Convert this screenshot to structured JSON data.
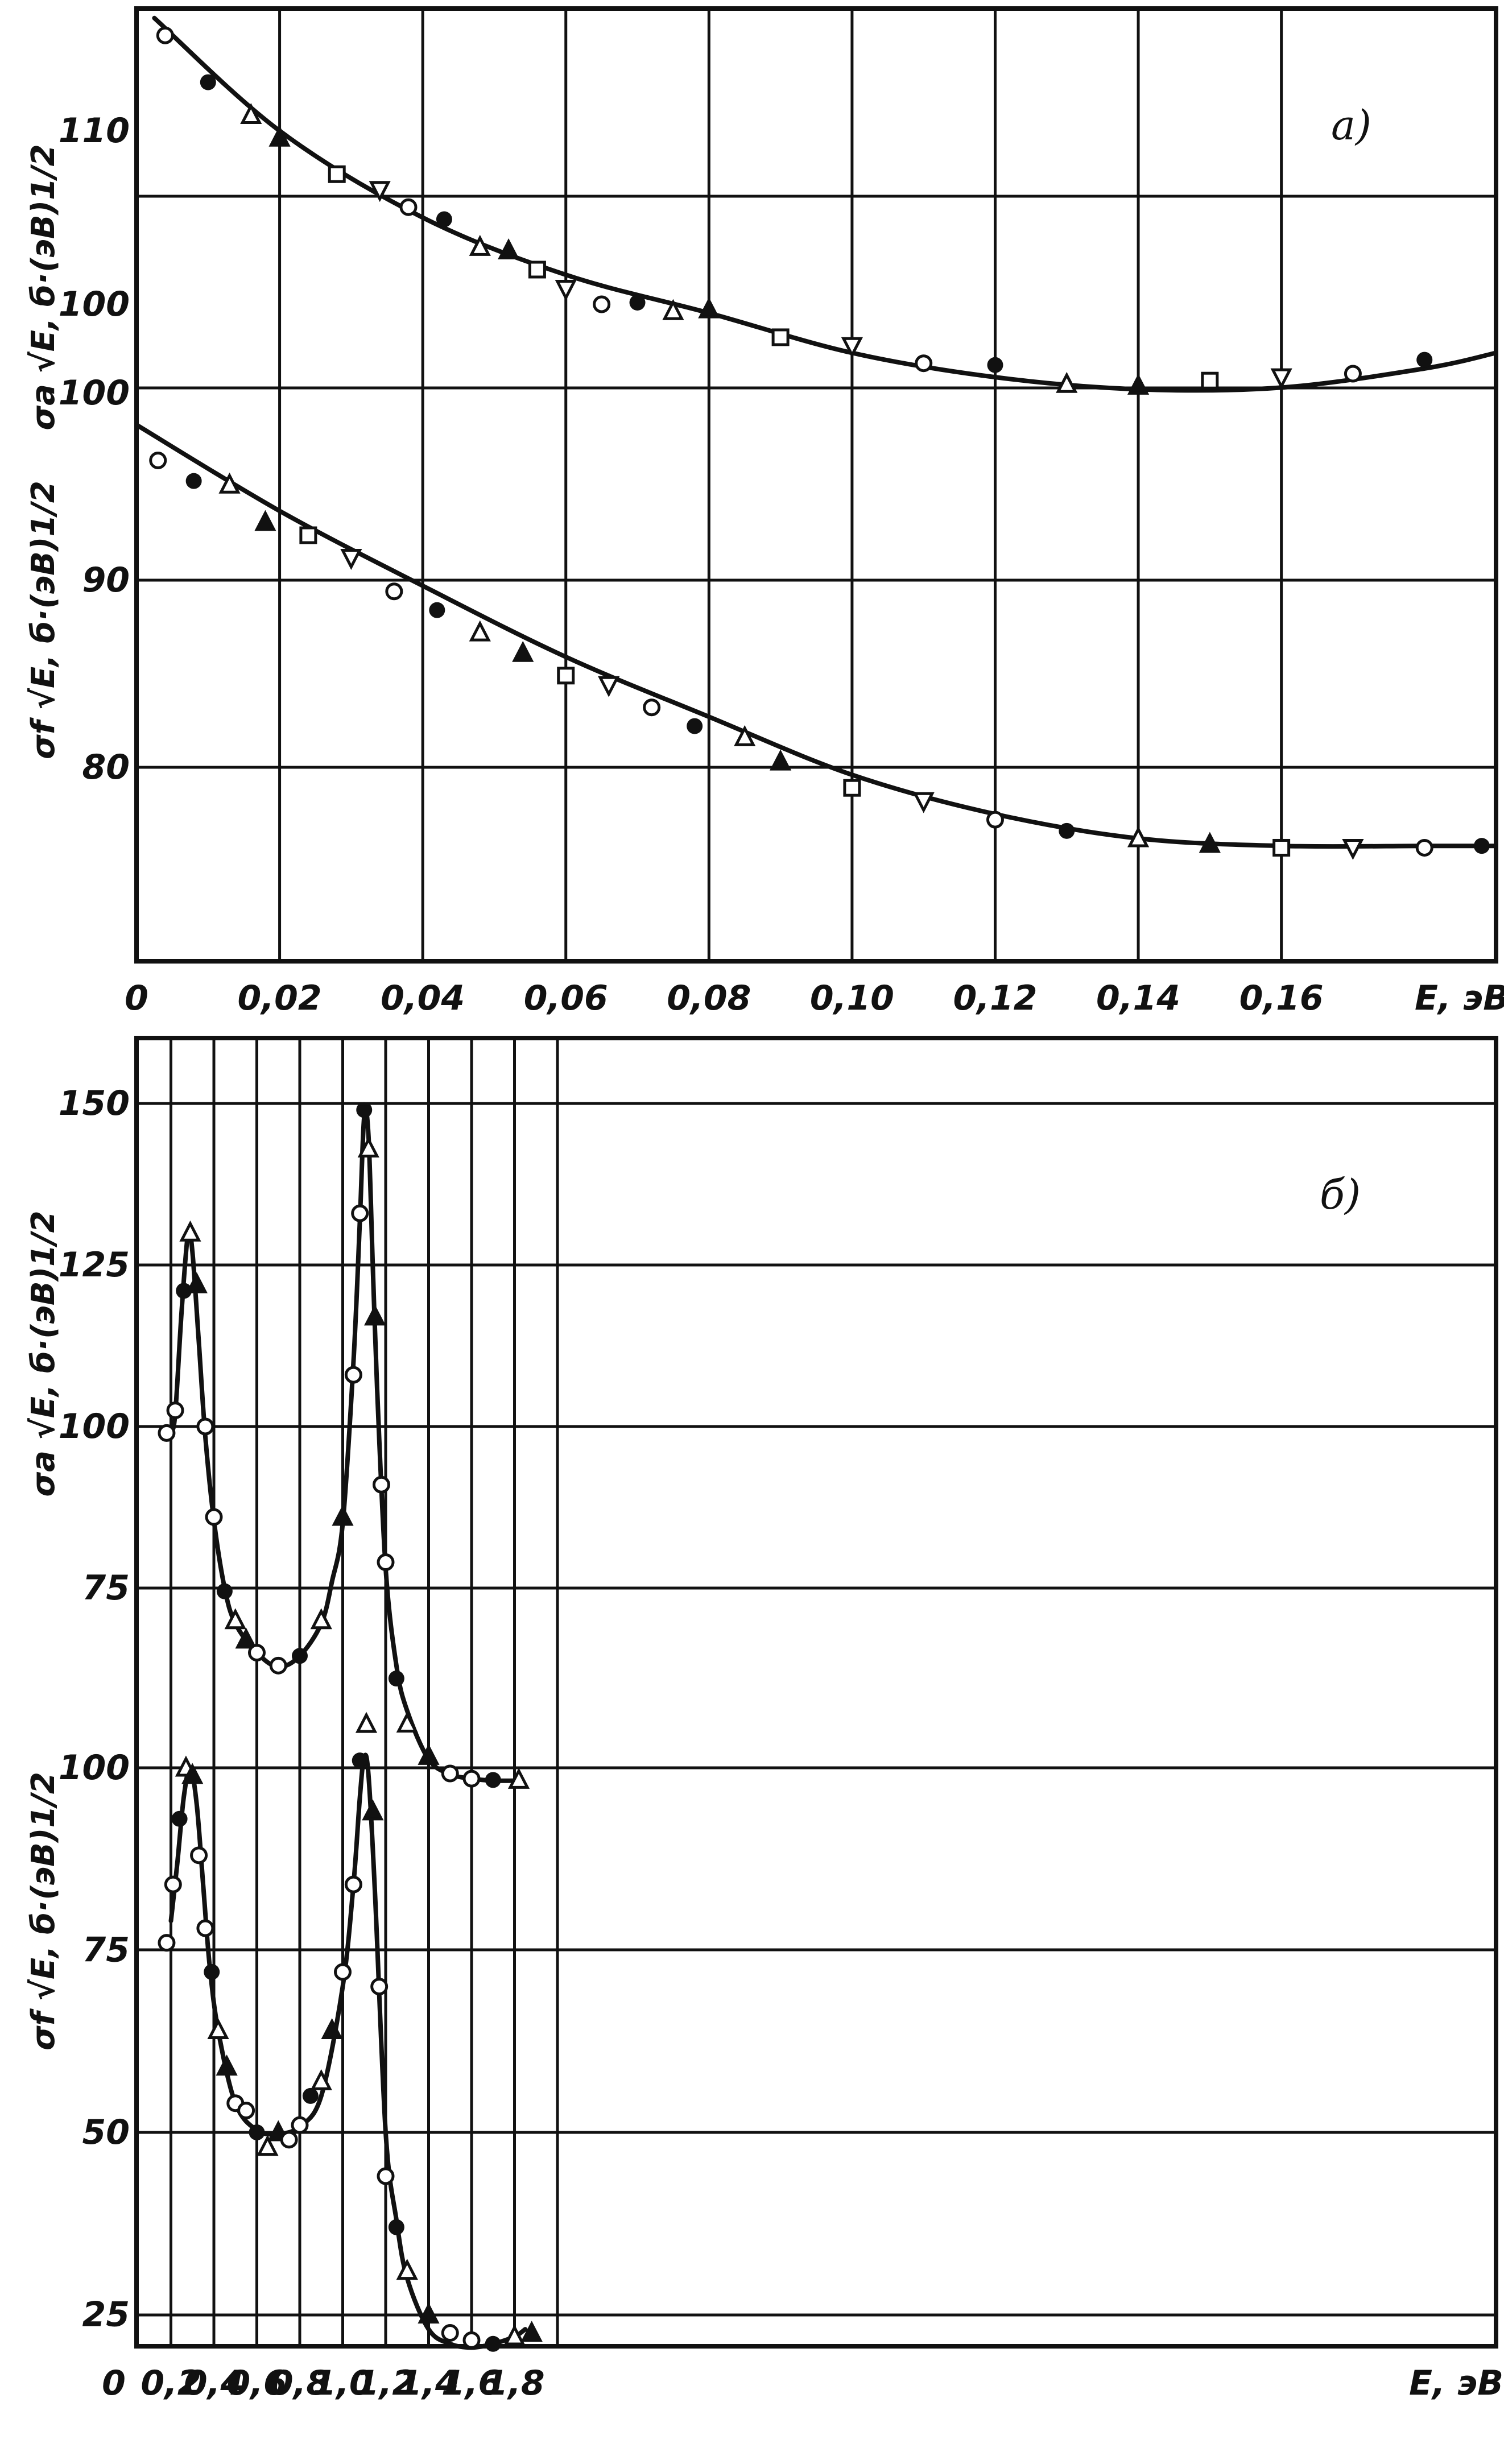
{
  "figure": {
    "panel_a_label": "а)",
    "panel_b_label": "б)",
    "xunit_a": "E, эВ",
    "xunit_b": "E, эВ"
  },
  "chart_data": [
    {
      "type": "scatter",
      "panel": "а)",
      "xlabel": "E, эВ",
      "xlim": [
        0,
        0.19
      ],
      "x_ticks": [
        "0",
        "0,02",
        "0,04",
        "0,06",
        "0,08",
        "0,10",
        "0,12",
        "0,14",
        "0,16",
        "E, эВ"
      ],
      "grid": true,
      "upper": {
        "ylabel": "σa √E, б·(эВ)1/2",
        "y_ticks": [
          {
            "v": 100,
            "t": "100"
          },
          {
            "v": 110,
            "t": "110"
          }
        ],
        "ylim": [
          90,
          116
        ],
        "curve": {
          "x": [
            0.0025,
            0.02,
            0.04,
            0.06,
            0.08,
            0.1,
            0.12,
            0.14,
            0.16,
            0.18,
            0.19
          ],
          "y": [
            116.5,
            110,
            105,
            101.7,
            99.5,
            97.2,
            95.8,
            95.1,
            95.2,
            96.3,
            97.2
          ]
        },
        "points": {
          "x": [
            0.004,
            0.01,
            0.016,
            0.02,
            0.028,
            0.034,
            0.038,
            0.043,
            0.048,
            0.052,
            0.056,
            0.06,
            0.065,
            0.07,
            0.075,
            0.08,
            0.09,
            0.1,
            0.11,
            0.12,
            0.13,
            0.14,
            0.15,
            0.16,
            0.17,
            0.18
          ],
          "y": [
            115.5,
            112.8,
            110.9,
            109.6,
            107.5,
            106.6,
            105.6,
            104.9,
            103.3,
            103.1,
            102,
            100.9,
            100,
            100.1,
            99.6,
            99.7,
            98.1,
            97.6,
            96.6,
            96.5,
            95.4,
            95.3,
            95.6,
            95.8,
            96,
            96.8
          ]
        }
      },
      "lower": {
        "ylabel": "σf √E, б·(эВ)1/2",
        "y_ticks": [
          {
            "v": 80,
            "t": "80"
          },
          {
            "v": 90,
            "t": "90"
          },
          {
            "v": 100,
            "t": "100"
          }
        ],
        "ylim": [
          70,
          100
        ],
        "curve": {
          "x": [
            0,
            0.02,
            0.04,
            0.06,
            0.08,
            0.1,
            0.12,
            0.14,
            0.16,
            0.18,
            0.19
          ],
          "y": [
            98.3,
            93.7,
            89.7,
            85.9,
            82.7,
            79.6,
            77.5,
            76.2,
            75.8,
            75.8,
            75.8
          ]
        },
        "points": {
          "x": [
            0.003,
            0.008,
            0.013,
            0.018,
            0.024,
            0.03,
            0.036,
            0.042,
            0.048,
            0.054,
            0.06,
            0.066,
            0.072,
            0.078,
            0.085,
            0.09,
            0.1,
            0.11,
            0.12,
            0.13,
            0.14,
            0.15,
            0.16,
            0.17,
            0.18,
            0.188
          ],
          "y": [
            96.4,
            95.3,
            95.1,
            93.1,
            92.4,
            91.2,
            89.4,
            88.4,
            87.2,
            86.1,
            84.9,
            84.4,
            83.2,
            82.2,
            81.6,
            80.3,
            78.9,
            78.2,
            77.2,
            76.6,
            76.2,
            75.9,
            75.7,
            75.7,
            75.7,
            75.8
          ]
        }
      }
    },
    {
      "type": "scatter",
      "panel": "б)",
      "xlabel": "E, эВ",
      "xlim": [
        0,
        2.0
      ],
      "x_ticks": [
        "0",
        "0,2",
        "0,4",
        "0,6",
        "0,8",
        "1,0",
        "1,2",
        "1,4",
        "1,6",
        "1,8",
        "E, эВ"
      ],
      "grid": true,
      "upper": {
        "ylabel": "σa √E, б·(эВ)1/2",
        "y_ticks": [
          {
            "v": 75,
            "t": "75"
          },
          {
            "v": 100,
            "t": "100"
          },
          {
            "v": 125,
            "t": "125"
          },
          {
            "v": 150,
            "t": "150"
          }
        ],
        "ylim": [
          50,
          150
        ],
        "curve": {
          "x": [
            0.18,
            0.2,
            0.22,
            0.25,
            0.28,
            0.3,
            0.33,
            0.36,
            0.4,
            0.45,
            0.5,
            0.6,
            0.7,
            0.8,
            0.9,
            0.95,
            1.0,
            1.05,
            1.08,
            1.1,
            1.12,
            1.14,
            1.16,
            1.2,
            1.25,
            1.3,
            1.4,
            1.5,
            1.6,
            1.7,
            1.82
          ],
          "y": [
            98,
            99,
            102,
            118,
            130,
            127,
            113,
            98.5,
            85.5,
            75,
            69.5,
            65,
            62.8,
            64.5,
            69.5,
            76,
            85,
            110,
            132,
            148,
            145,
            125,
            106,
            78,
            63,
            56,
            48.5,
            46.2,
            45.5,
            45.2,
            45.2
          ]
        },
        "points": {
          "x": [
            0.18,
            0.22,
            0.26,
            0.29,
            0.32,
            0.36,
            0.4,
            0.45,
            0.5,
            0.55,
            0.6,
            0.7,
            0.8,
            0.9,
            1.0,
            1.05,
            1.08,
            1.1,
            1.12,
            1.15,
            1.18,
            1.2,
            1.25,
            1.3,
            1.4,
            1.5,
            1.6,
            1.7,
            1.82
          ],
          "y": [
            99,
            102.5,
            121,
            130,
            122,
            100,
            86,
            74.5,
            70,
            67,
            65,
            63,
            64.5,
            70,
            86,
            108,
            133,
            149,
            143,
            117,
            91,
            79,
            61,
            54,
            49,
            46.3,
            45.5,
            45.3,
            45.3
          ]
        }
      },
      "lower": {
        "ylabel": "σf √E, б·(эВ)1/2",
        "y_ticks": [
          {
            "v": 25,
            "t": "25"
          },
          {
            "v": 50,
            "t": "50"
          },
          {
            "v": 75,
            "t": "75"
          },
          {
            "v": 100,
            "t": "100"
          }
        ],
        "ylim": [
          0,
          100
        ],
        "curve": {
          "x": [
            0.2,
            0.23,
            0.26,
            0.29,
            0.32,
            0.35,
            0.38,
            0.42,
            0.5,
            0.6,
            0.7,
            0.8,
            0.9,
            1.0,
            1.05,
            1.08,
            1.1,
            1.12,
            1.15,
            1.2,
            1.25,
            1.3,
            1.4,
            1.5,
            1.6,
            1.7,
            1.8,
            1.85
          ],
          "y": [
            79,
            87,
            96,
            100,
            95,
            84,
            73,
            64,
            54,
            50.3,
            49.8,
            50.8,
            55,
            70,
            84,
            96,
            101.5,
            99,
            83,
            50,
            38,
            30,
            23,
            21,
            20.5,
            21,
            22,
            23
          ]
        },
        "points": {
          "x": [
            0.18,
            0.21,
            0.24,
            0.27,
            0.3,
            0.33,
            0.36,
            0.39,
            0.42,
            0.46,
            0.5,
            0.55,
            0.6,
            0.65,
            0.7,
            0.75,
            0.8,
            0.85,
            0.9,
            0.95,
            1.0,
            1.05,
            1.08,
            1.11,
            1.14,
            1.17,
            1.2,
            1.25,
            1.3,
            1.4,
            1.5,
            1.6,
            1.7,
            1.8,
            1.88
          ],
          "y": [
            76,
            84,
            93,
            100,
            99,
            88,
            78,
            72,
            64,
            59,
            54,
            53,
            50,
            48,
            50,
            49,
            51,
            55,
            57,
            64,
            72,
            84,
            101,
            106,
            94,
            70,
            44,
            37,
            31,
            25,
            22.5,
            21.5,
            21,
            22,
            22.5
          ]
        }
      }
    }
  ]
}
